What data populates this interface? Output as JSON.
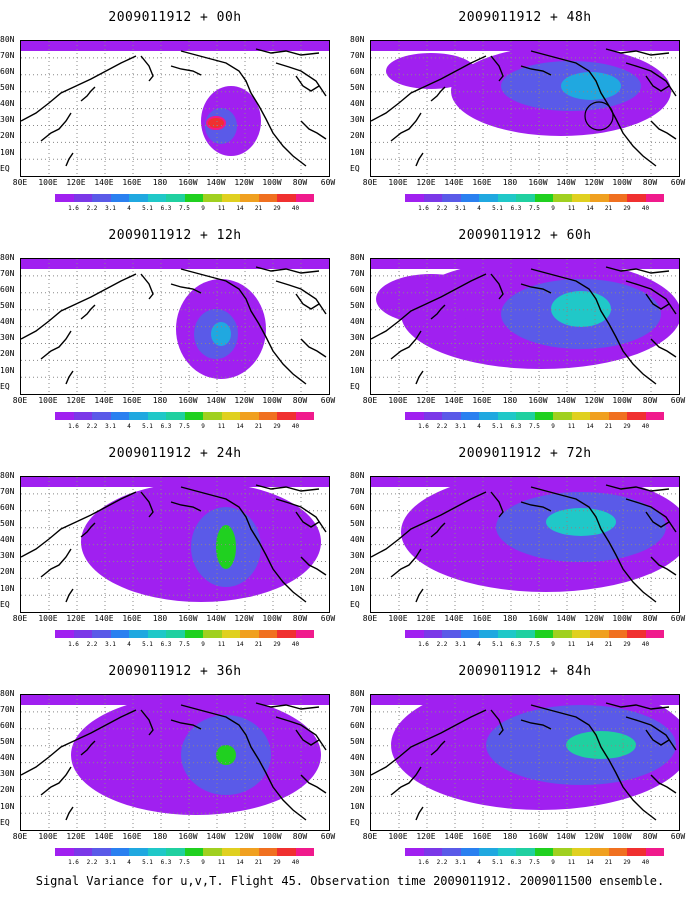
{
  "panels": [
    {
      "title": "2009011912 + 00h"
    },
    {
      "title": "2009011912 + 48h"
    },
    {
      "title": "2009011912 + 12h"
    },
    {
      "title": "2009011912 + 60h"
    },
    {
      "title": "2009011912 + 24h"
    },
    {
      "title": "2009011912 + 72h"
    },
    {
      "title": "2009011912 + 36h"
    },
    {
      "title": "2009011912 + 84h"
    }
  ],
  "lat_labels": [
    "80N",
    "70N",
    "60N",
    "50N",
    "40N",
    "30N",
    "20N",
    "10N",
    "EQ"
  ],
  "lon_labels": [
    "80E",
    "100E",
    "120E",
    "140E",
    "160E",
    "180",
    "160W",
    "140W",
    "120W",
    "100W",
    "80W",
    "60W"
  ],
  "colorbar": {
    "labels": [
      "1.6",
      "2.2",
      "3.1",
      "4",
      "5.1",
      "6.3",
      "7.5",
      "9",
      "11",
      "14",
      "21",
      "29",
      "40"
    ],
    "colors": [
      "#a020f0",
      "#7b38e8",
      "#5a5ae8",
      "#2a80f0",
      "#20a8e0",
      "#20c8c8",
      "#20d0a0",
      "#20d020",
      "#a0d020",
      "#e0d020",
      "#f0a020",
      "#f07020",
      "#f03030",
      "#f01a8c"
    ]
  },
  "footer": "Signal Variance for u,v,T. Flight 45. Observation time 2009011912. 2009011500 ensemble."
}
